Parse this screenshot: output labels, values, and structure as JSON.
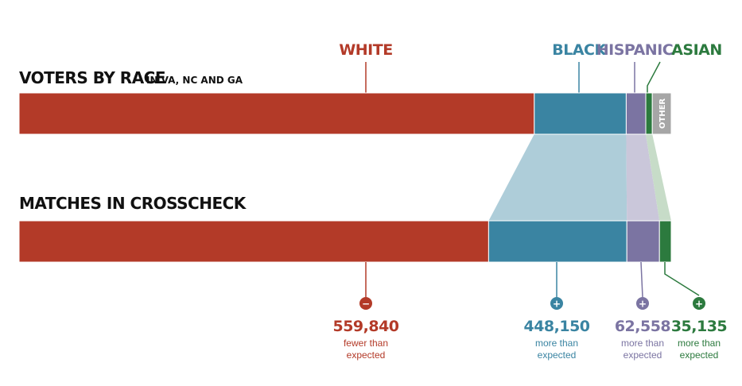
{
  "colors": {
    "white": "#b33a28",
    "black": "#3a84a2",
    "hispanic": "#7b74a2",
    "asian": "#2c7a3e",
    "other": "#a6a6a6",
    "black_band": "#aecdd9",
    "hispanic_band": "#cac7da",
    "asian_band": "#c7dcc8"
  },
  "chart_data": {
    "type": "bar",
    "orientation": "horizontal-stacked-100",
    "rows": [
      {
        "title": "VOTERS BY RACE",
        "subtitle": "IN VA, NC AND GA"
      },
      {
        "title": "MATCHES IN CROSSCHECK",
        "subtitle": ""
      }
    ],
    "categories": [
      "WHITE",
      "BLACK",
      "HISPANIC",
      "ASIAN",
      "OTHER"
    ],
    "series": [
      {
        "name": "VOTERS BY RACE",
        "values": [
          79.0,
          14.1,
          3.0,
          1.0,
          2.9
        ]
      },
      {
        "name": "MATCHES IN CROSSCHECK",
        "values": [
          72.0,
          21.2,
          5.0,
          1.8,
          0
        ]
      }
    ],
    "differences": [
      {
        "category": "WHITE",
        "sign": "−",
        "value": "559,840",
        "desc1": "fewer than",
        "desc2": "expected"
      },
      {
        "category": "BLACK",
        "sign": "+",
        "value": "448,150",
        "desc1": "more than",
        "desc2": "expected"
      },
      {
        "category": "HISPANIC",
        "sign": "+",
        "value": "62,558",
        "desc1": "more than",
        "desc2": "expected"
      },
      {
        "category": "ASIAN",
        "sign": "+",
        "value": "35,135",
        "desc1": "more than",
        "desc2": "expected"
      }
    ],
    "legend": "none",
    "grid": false
  }
}
